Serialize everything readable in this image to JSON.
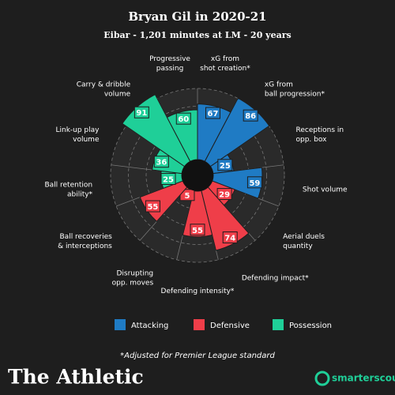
{
  "chart_data": {
    "type": "polar",
    "title": "Bryan Gil in 2020-21",
    "subtitle": "Eibar - 1,201 minutes at LM - 20 years",
    "note": "*Adjusted for Premier League standard",
    "brand": "The Athletic",
    "source": "smarterscout",
    "categories": [
      "xG from\nshot creation*",
      "xG from\nball progression*",
      "Receptions in\nopp. box",
      "Shot volume",
      "Aerial duels\nquantity",
      "Defending impact*",
      "Defending intensity*",
      "Disrupting\nopp. moves",
      "Ball recoveries\n& interceptions",
      "Ball retention\nability*",
      "Link-up play\nvolume",
      "Carry & dribble\nvolume",
      "Progressive\npassing"
    ],
    "series": [
      {
        "name": "Attacking",
        "color": "#1f7bc4",
        "values": [
          67,
          86,
          25,
          59,
          null,
          null,
          null,
          null,
          null,
          null,
          null,
          null,
          null
        ]
      },
      {
        "name": "Defensive",
        "color": "#ef3e49",
        "values": [
          null,
          null,
          null,
          null,
          29,
          74,
          55,
          5,
          55,
          null,
          null,
          null,
          null
        ]
      },
      {
        "name": "Possession",
        "color": "#1fcf98",
        "values": [
          null,
          null,
          null,
          null,
          null,
          null,
          null,
          null,
          null,
          25,
          36,
          91,
          60
        ]
      }
    ],
    "rlim": [
      0,
      100
    ],
    "rticks": [
      25,
      50,
      75,
      100
    ],
    "grid": true,
    "legend": "bottom"
  }
}
